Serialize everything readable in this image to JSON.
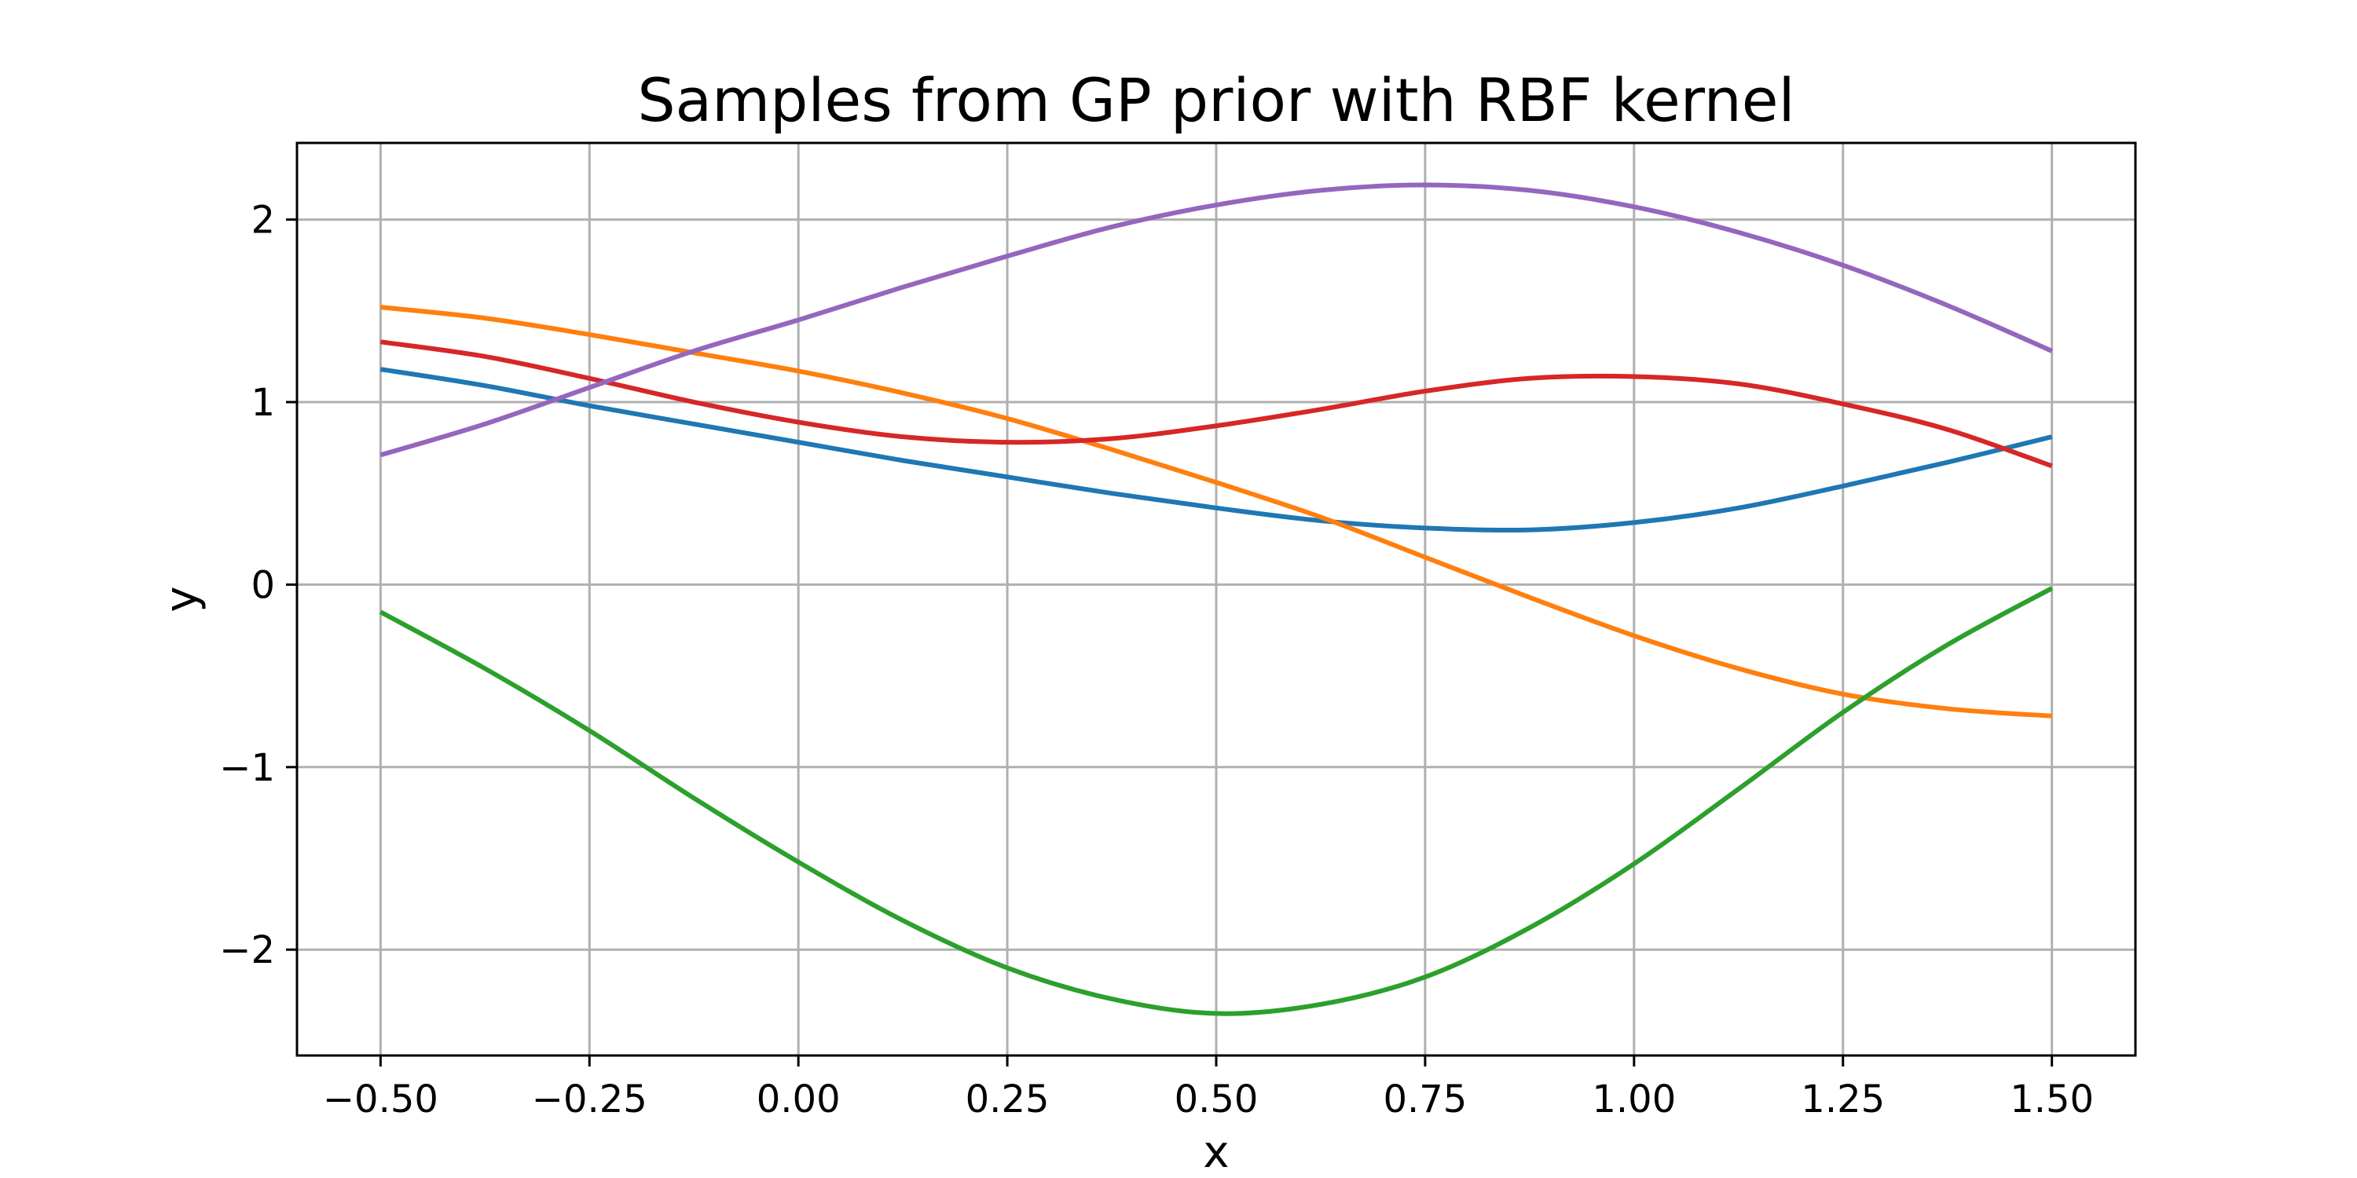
{
  "chart_data": {
    "type": "line",
    "title": "Samples from GP prior with RBF kernel",
    "xlabel": "x",
    "ylabel": "y",
    "xlim": [
      -0.6,
      1.6
    ],
    "ylim": [
      -2.58,
      2.42
    ],
    "grid": true,
    "legend": "none",
    "x_ticks": [
      -0.5,
      -0.25,
      0.0,
      0.25,
      0.5,
      0.75,
      1.0,
      1.25,
      1.5
    ],
    "x_tick_labels": [
      "−0.50",
      "−0.25",
      "0.00",
      "0.25",
      "0.50",
      "0.75",
      "1.00",
      "1.25",
      "1.50"
    ],
    "y_ticks": [
      -2,
      -1,
      0,
      1,
      2
    ],
    "y_tick_labels": [
      "−2",
      "−1",
      "0",
      "1",
      "2"
    ],
    "x": [
      -0.5,
      -0.375,
      -0.25,
      -0.125,
      0.0,
      0.125,
      0.25,
      0.375,
      0.5,
      0.625,
      0.75,
      0.875,
      1.0,
      1.125,
      1.25,
      1.375,
      1.5
    ],
    "series": [
      {
        "color": "#1f77b4",
        "values": [
          1.18,
          1.09,
          0.98,
          0.88,
          0.78,
          0.68,
          0.59,
          0.5,
          0.42,
          0.35,
          0.31,
          0.3,
          0.34,
          0.42,
          0.54,
          0.67,
          0.81
        ]
      },
      {
        "color": "#ff7f0e",
        "values": [
          1.52,
          1.46,
          1.37,
          1.27,
          1.17,
          1.05,
          0.91,
          0.74,
          0.56,
          0.37,
          0.15,
          -0.07,
          -0.28,
          -0.46,
          -0.6,
          -0.68,
          -0.72
        ]
      },
      {
        "color": "#2ca02c",
        "values": [
          -0.15,
          -0.46,
          -0.8,
          -1.17,
          -1.52,
          -1.84,
          -2.1,
          -2.27,
          -2.35,
          -2.3,
          -2.15,
          -1.88,
          -1.53,
          -1.12,
          -0.7,
          -0.33,
          -0.02
        ]
      },
      {
        "color": "#d62728",
        "values": [
          1.33,
          1.25,
          1.13,
          1.0,
          0.89,
          0.81,
          0.78,
          0.8,
          0.87,
          0.96,
          1.06,
          1.13,
          1.14,
          1.1,
          0.99,
          0.85,
          0.65
        ]
      },
      {
        "color": "#9467bd",
        "values": [
          0.71,
          0.88,
          1.08,
          1.28,
          1.45,
          1.63,
          1.8,
          1.96,
          2.08,
          2.16,
          2.19,
          2.16,
          2.07,
          1.93,
          1.75,
          1.53,
          1.28
        ]
      }
    ]
  }
}
